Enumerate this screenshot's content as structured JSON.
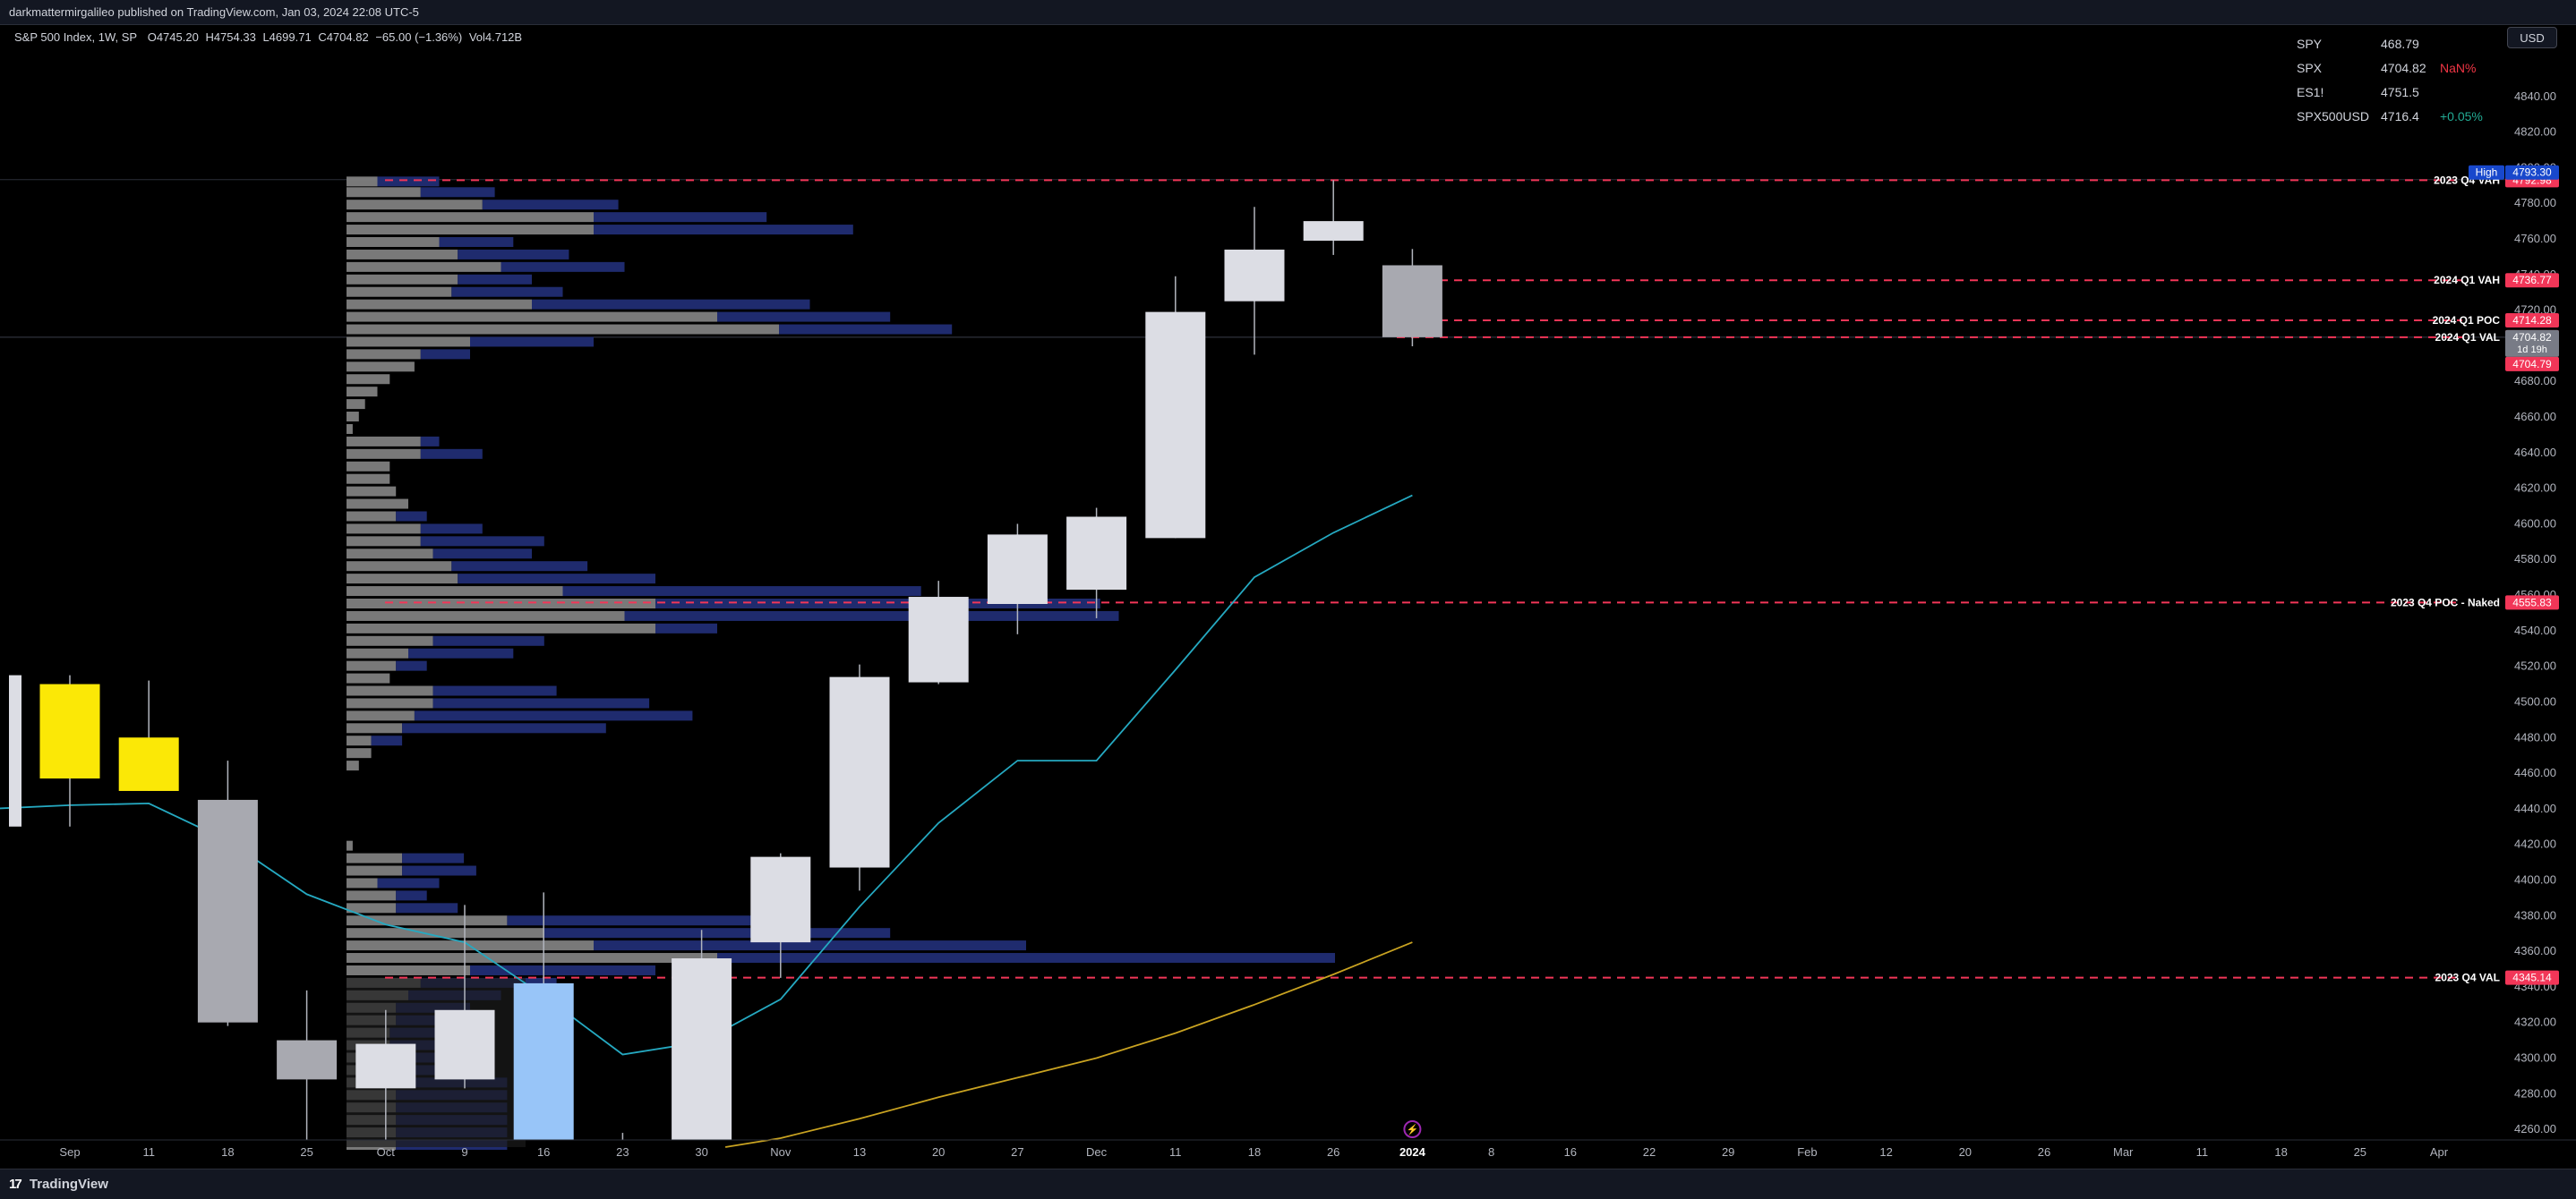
{
  "header": {
    "publish_text": "darkmattermirgalileo published on TradingView.com, Jan 03, 2024 22:08 UTC-5"
  },
  "legend": {
    "symbol_text": "S&P 500 Index, 1W, SP",
    "open": "O4745.20",
    "high": "H4754.33",
    "low": "L4699.71",
    "close": "C4704.82",
    "change": "−65.00 (−1.36%)",
    "volume": "Vol4.712B"
  },
  "watchlist": [
    {
      "symbol": "SPY",
      "price": "468.79",
      "change": "",
      "change_color": "#d1d4dc"
    },
    {
      "symbol": "SPX",
      "price": "4704.82",
      "change": "NaN%",
      "change_color": "#f23645"
    },
    {
      "symbol": "ES1!",
      "price": "4751.5",
      "change": "",
      "change_color": "#d1d4dc"
    },
    {
      "symbol": "SPX500USD",
      "price": "4716.4",
      "change": "+0.05%",
      "change_color": "#22ab94"
    }
  ],
  "currency_button": "USD",
  "footer": {
    "brand": "TradingView",
    "logo_glyph": "17"
  },
  "colors": {
    "background": "#000000",
    "level_line": "#f23658",
    "up_candle": "#dcdde4",
    "down_candle": "#a8a9b0",
    "highlight_candle": "#98c5f8",
    "yellow_candle": "#fbe806",
    "ema_fast": "#25a9c1",
    "ema_slow": "#c9a321",
    "vp_grey": "#7f7f7f",
    "vp_navy": "#1f2b6e"
  },
  "chart_data": {
    "type": "candlestick",
    "title": "",
    "ylim": [
      4250,
      4860
    ],
    "y_ticks": [
      4260,
      4280,
      4300,
      4320,
      4340,
      4360,
      4380,
      4400,
      4420,
      4440,
      4460,
      4480,
      4500,
      4520,
      4540,
      4560,
      4580,
      4600,
      4620,
      4640,
      4660,
      4680,
      4700,
      4720,
      4740,
      4760,
      4780,
      4800,
      4820,
      4840
    ],
    "x_labels": [
      {
        "label": "Sep",
        "week": 0
      },
      {
        "label": "11",
        "week": 1
      },
      {
        "label": "18",
        "week": 2
      },
      {
        "label": "25",
        "week": 3
      },
      {
        "label": "Oct",
        "week": 4
      },
      {
        "label": "9",
        "week": 5
      },
      {
        "label": "16",
        "week": 6
      },
      {
        "label": "23",
        "week": 7
      },
      {
        "label": "30",
        "week": 8
      },
      {
        "label": "Nov",
        "week": 9
      },
      {
        "label": "13",
        "week": 10
      },
      {
        "label": "20",
        "week": 11
      },
      {
        "label": "27",
        "week": 12
      },
      {
        "label": "Dec",
        "week": 13
      },
      {
        "label": "11",
        "week": 14
      },
      {
        "label": "18",
        "week": 15
      },
      {
        "label": "26",
        "week": 16
      },
      {
        "label": "2024",
        "week": 17
      },
      {
        "label": "8",
        "week": 18
      },
      {
        "label": "16",
        "week": 19
      },
      {
        "label": "22",
        "week": 20
      },
      {
        "label": "29",
        "week": 21
      },
      {
        "label": "Feb",
        "week": 22
      },
      {
        "label": "12",
        "week": 23
      },
      {
        "label": "20",
        "week": 24
      },
      {
        "label": "26",
        "week": 25
      },
      {
        "label": "Mar",
        "week": 26
      },
      {
        "label": "11",
        "week": 27
      },
      {
        "label": "18",
        "week": 28
      },
      {
        "label": "25",
        "week": 29
      },
      {
        "label": "Apr",
        "week": 30
      }
    ],
    "candles": [
      {
        "week": -1,
        "open": 4430,
        "high": 4515,
        "low": 4430,
        "close": 4515,
        "style": "up"
      },
      {
        "week": 0,
        "open": 4457,
        "high": 4515,
        "low": 4430,
        "close": 4510,
        "style": "yellow"
      },
      {
        "week": 1,
        "open": 4450,
        "high": 4512,
        "low": 4450,
        "close": 4480,
        "style": "yellow"
      },
      {
        "week": 2,
        "open": 4445,
        "high": 4467,
        "low": 4318,
        "close": 4320,
        "style": "down"
      },
      {
        "week": 3,
        "open": 4310,
        "high": 4338,
        "low": 4238,
        "close": 4288,
        "style": "down"
      },
      {
        "week": 4,
        "open": 4283,
        "high": 4327,
        "low": 4216,
        "close": 4308,
        "style": "up"
      },
      {
        "week": 5,
        "open": 4288,
        "high": 4386,
        "low": 4283,
        "close": 4327,
        "style": "up"
      },
      {
        "week": 6,
        "open": 4222,
        "high": 4393,
        "low": 4222,
        "close": 4342,
        "style": "highlight"
      },
      {
        "week": 7,
        "open": 4225,
        "high": 4258,
        "low": 4225,
        "close": 4228,
        "style": "down"
      },
      {
        "week": 8,
        "open": 4228,
        "high": 4372,
        "low": 4228,
        "close": 4356,
        "style": "up"
      },
      {
        "week": 9,
        "open": 4365,
        "high": 4415,
        "low": 4345,
        "close": 4413,
        "style": "up"
      },
      {
        "week": 10,
        "open": 4407,
        "high": 4521,
        "low": 4394,
        "close": 4514,
        "style": "up"
      },
      {
        "week": 11,
        "open": 4511,
        "high": 4568,
        "low": 4510,
        "close": 4559,
        "style": "up"
      },
      {
        "week": 12,
        "open": 4555,
        "high": 4600,
        "low": 4538,
        "close": 4594,
        "style": "up"
      },
      {
        "week": 13,
        "open": 4563,
        "high": 4609,
        "low": 4547,
        "close": 4604,
        "style": "up"
      },
      {
        "week": 14,
        "open": 4592,
        "high": 4739,
        "low": 4592,
        "close": 4719,
        "style": "up"
      },
      {
        "week": 15,
        "open": 4725,
        "high": 4778,
        "low": 4695,
        "close": 4754,
        "style": "up"
      },
      {
        "week": 16,
        "open": 4759,
        "high": 4793,
        "low": 4751,
        "close": 4770,
        "style": "up"
      },
      {
        "week": 17,
        "open": 4745.2,
        "high": 4754.33,
        "low": 4699.71,
        "close": 4704.82,
        "style": "down"
      }
    ],
    "ema_fast": [
      {
        "week": -1,
        "value": 4440
      },
      {
        "week": 0,
        "value": 4442
      },
      {
        "week": 1,
        "value": 4443
      },
      {
        "week": 2,
        "value": 4422
      },
      {
        "week": 3,
        "value": 4392
      },
      {
        "week": 4,
        "value": 4375
      },
      {
        "week": 5,
        "value": 4365
      },
      {
        "week": 6,
        "value": 4335
      },
      {
        "week": 7,
        "value": 4302
      },
      {
        "week": 8,
        "value": 4309
      },
      {
        "week": 9,
        "value": 4333
      },
      {
        "week": 10,
        "value": 4385
      },
      {
        "week": 11,
        "value": 4432
      },
      {
        "week": 12,
        "value": 4467
      },
      {
        "week": 13,
        "value": 4467
      },
      {
        "week": 14,
        "value": 4518
      },
      {
        "week": 15,
        "value": 4570
      },
      {
        "week": 16,
        "value": 4595
      },
      {
        "week": 17,
        "value": 4616
      }
    ],
    "ema_slow": [
      {
        "week": 8.3,
        "value": 4250
      },
      {
        "week": 9,
        "value": 4255
      },
      {
        "week": 10,
        "value": 4266
      },
      {
        "week": 11,
        "value": 4278
      },
      {
        "week": 12,
        "value": 4289
      },
      {
        "week": 13,
        "value": 4300
      },
      {
        "week": 14,
        "value": 4314
      },
      {
        "week": 15,
        "value": 4330
      },
      {
        "week": 16,
        "value": 4347
      },
      {
        "week": 17,
        "value": 4365
      }
    ],
    "levels": [
      {
        "label": "2023 Q4 VAH",
        "value": 4792.98,
        "tag": "4792.98"
      },
      {
        "label": "2024 Q1 VAH",
        "value": 4736.77,
        "tag": "4736.77"
      },
      {
        "label": "2024 Q1 POC",
        "value": 4714.28,
        "tag": "4714.28"
      },
      {
        "label": "2024 Q1 VAL",
        "value": 4704.79,
        "tag": "4704.79"
      },
      {
        "label": "2023 Q4 POC - Naked",
        "value": 4555.83,
        "tag": "4555.83"
      },
      {
        "label": "2023 Q4 VAL",
        "value": 4345.14,
        "tag": "4345.14"
      }
    ],
    "high_marker": {
      "label": "High",
      "value": 4793.3,
      "tag": "4793.30"
    },
    "last_price": {
      "value": 4704.82,
      "tag": "4704.82",
      "countdown": "1d 19h"
    },
    "volume_profile": [
      {
        "price": 4792,
        "grey": 0.05,
        "navy": 0.1
      },
      {
        "price": 4786,
        "grey": 0.12,
        "navy": 0.12
      },
      {
        "price": 4779,
        "grey": 0.22,
        "navy": 0.22
      },
      {
        "price": 4772,
        "grey": 0.4,
        "navy": 0.28
      },
      {
        "price": 4765,
        "grey": 0.4,
        "navy": 0.42
      },
      {
        "price": 4758,
        "grey": 0.15,
        "navy": 0.12
      },
      {
        "price": 4751,
        "grey": 0.18,
        "navy": 0.18
      },
      {
        "price": 4744,
        "grey": 0.25,
        "navy": 0.2
      },
      {
        "price": 4737,
        "grey": 0.18,
        "navy": 0.12
      },
      {
        "price": 4730,
        "grey": 0.17,
        "navy": 0.18
      },
      {
        "price": 4723,
        "grey": 0.3,
        "navy": 0.45
      },
      {
        "price": 4716,
        "grey": 0.6,
        "navy": 0.28
      },
      {
        "price": 4709,
        "grey": 0.7,
        "navy": 0.28
      },
      {
        "price": 4702,
        "grey": 0.2,
        "navy": 0.2
      },
      {
        "price": 4695,
        "grey": 0.12,
        "navy": 0.08
      },
      {
        "price": 4688,
        "grey": 0.11,
        "navy": 0.0
      },
      {
        "price": 4681,
        "grey": 0.07,
        "navy": 0.0
      },
      {
        "price": 4674,
        "grey": 0.05,
        "navy": 0.0
      },
      {
        "price": 4667,
        "grey": 0.03,
        "navy": 0.0
      },
      {
        "price": 4660,
        "grey": 0.02,
        "navy": 0.0
      },
      {
        "price": 4653,
        "grey": 0.01,
        "navy": 0.0
      },
      {
        "price": 4646,
        "grey": 0.12,
        "navy": 0.03
      },
      {
        "price": 4639,
        "grey": 0.12,
        "navy": 0.1
      },
      {
        "price": 4632,
        "grey": 0.07,
        "navy": 0.0
      },
      {
        "price": 4625,
        "grey": 0.07,
        "navy": 0.0
      },
      {
        "price": 4618,
        "grey": 0.08,
        "navy": 0.0
      },
      {
        "price": 4611,
        "grey": 0.1,
        "navy": 0.0
      },
      {
        "price": 4604,
        "grey": 0.08,
        "navy": 0.05
      },
      {
        "price": 4597,
        "grey": 0.12,
        "navy": 0.1
      },
      {
        "price": 4590,
        "grey": 0.12,
        "navy": 0.2
      },
      {
        "price": 4583,
        "grey": 0.14,
        "navy": 0.16
      },
      {
        "price": 4576,
        "grey": 0.17,
        "navy": 0.22
      },
      {
        "price": 4569,
        "grey": 0.18,
        "navy": 0.32
      },
      {
        "price": 4562,
        "grey": 0.35,
        "navy": 0.58
      },
      {
        "price": 4555,
        "grey": 0.5,
        "navy": 0.72
      },
      {
        "price": 4548,
        "grey": 0.45,
        "navy": 0.8
      },
      {
        "price": 4541,
        "grey": 0.5,
        "navy": 0.1
      },
      {
        "price": 4534,
        "grey": 0.14,
        "navy": 0.18
      },
      {
        "price": 4527,
        "grey": 0.1,
        "navy": 0.17
      },
      {
        "price": 4520,
        "grey": 0.08,
        "navy": 0.05
      },
      {
        "price": 4513,
        "grey": 0.07,
        "navy": 0.0
      },
      {
        "price": 4506,
        "grey": 0.14,
        "navy": 0.2
      },
      {
        "price": 4499,
        "grey": 0.14,
        "navy": 0.35
      },
      {
        "price": 4492,
        "grey": 0.11,
        "navy": 0.45
      },
      {
        "price": 4485,
        "grey": 0.09,
        "navy": 0.33
      },
      {
        "price": 4478,
        "grey": 0.04,
        "navy": 0.05
      },
      {
        "price": 4471,
        "grey": 0.04,
        "navy": 0.0
      },
      {
        "price": 4464,
        "grey": 0.02,
        "navy": 0.0
      },
      {
        "price": 4419,
        "grey": 0.01,
        "navy": 0.0
      },
      {
        "price": 4412,
        "grey": 0.09,
        "navy": 0.1
      },
      {
        "price": 4405,
        "grey": 0.09,
        "navy": 0.12
      },
      {
        "price": 4398,
        "grey": 0.05,
        "navy": 0.1
      },
      {
        "price": 4391,
        "grey": 0.08,
        "navy": 0.05
      },
      {
        "price": 4384,
        "grey": 0.08,
        "navy": 0.1
      },
      {
        "price": 4377,
        "grey": 0.26,
        "navy": 0.4
      },
      {
        "price": 4370,
        "grey": 0.32,
        "navy": 0.56
      },
      {
        "price": 4363,
        "grey": 0.4,
        "navy": 0.7
      },
      {
        "price": 4356,
        "grey": 0.6,
        "navy": 1.0
      },
      {
        "price": 4349,
        "grey": 0.2,
        "navy": 0.3
      },
      {
        "price": 4342,
        "grey": 0.12,
        "navy": 0.22
      },
      {
        "price": 4335,
        "grey": 0.1,
        "navy": 0.15
      },
      {
        "price": 4328,
        "grey": 0.08,
        "navy": 0.12
      },
      {
        "price": 4321,
        "grey": 0.08,
        "navy": 0.1
      },
      {
        "price": 4314,
        "grey": 0.07,
        "navy": 0.12
      },
      {
        "price": 4307,
        "grey": 0.07,
        "navy": 0.12
      },
      {
        "price": 4300,
        "grey": 0.08,
        "navy": 0.16
      },
      {
        "price": 4293,
        "grey": 0.08,
        "navy": 0.16
      },
      {
        "price": 4286,
        "grey": 0.08,
        "navy": 0.18
      },
      {
        "price": 4279,
        "grey": 0.08,
        "navy": 0.18
      },
      {
        "price": 4272,
        "grey": 0.08,
        "navy": 0.18
      },
      {
        "price": 4265,
        "grey": 0.08,
        "navy": 0.18
      },
      {
        "price": 4258,
        "grey": 0.08,
        "navy": 0.18
      },
      {
        "price": 4251,
        "grey": 0.08,
        "navy": 0.18
      }
    ],
    "grid": false
  }
}
